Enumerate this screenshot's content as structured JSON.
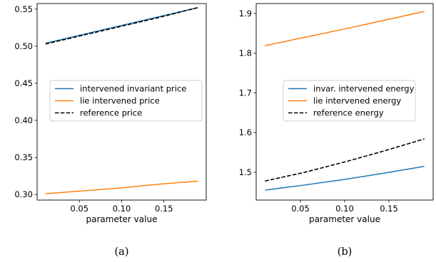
{
  "chart_data": [
    {
      "type": "line",
      "caption": "(a)",
      "xlabel": "parameter value",
      "ylabel": "",
      "xlim": [
        0.0,
        0.2
      ],
      "ylim": [
        0.2925,
        0.5575
      ],
      "xticks": [
        0.05,
        0.1,
        0.15
      ],
      "xtick_labels": [
        "0.05",
        "0.10",
        "0.15"
      ],
      "yticks": [
        0.3,
        0.35,
        0.4,
        0.45,
        0.5,
        0.55
      ],
      "ytick_labels": [
        "0.30",
        "0.35",
        "0.40",
        "0.45",
        "0.50",
        "0.55"
      ],
      "grid": false,
      "legend_position": "center-right",
      "series": [
        {
          "name": "intervened invariant price",
          "color": "#1f77b4",
          "dash": "solid",
          "x": [
            0.01,
            0.055,
            0.1,
            0.145,
            0.19
          ],
          "y": [
            0.504,
            0.516,
            0.528,
            0.54,
            0.552
          ]
        },
        {
          "name": "lie intervened price",
          "color": "#ff7f0e",
          "dash": "solid",
          "x": [
            0.01,
            0.055,
            0.1,
            0.145,
            0.19
          ],
          "y": [
            0.301,
            0.305,
            0.309,
            0.314,
            0.318
          ]
        },
        {
          "name": "reference price",
          "color": "#000000",
          "dash": "dashed",
          "x": [
            0.01,
            0.055,
            0.1,
            0.145,
            0.19
          ],
          "y": [
            0.503,
            0.515,
            0.527,
            0.539,
            0.552
          ]
        }
      ]
    },
    {
      "type": "line",
      "caption": "(b)",
      "xlabel": "parameter value",
      "ylabel": "",
      "xlim": [
        0.0,
        0.2
      ],
      "ylim": [
        1.43,
        1.925
      ],
      "xticks": [
        0.05,
        0.1,
        0.15
      ],
      "xtick_labels": [
        "0.05",
        "0.10",
        "0.15"
      ],
      "yticks": [
        1.5,
        1.6,
        1.7,
        1.8,
        1.9
      ],
      "ytick_labels": [
        "1.5",
        "1.6",
        "1.7",
        "1.8",
        "1.9"
      ],
      "grid": false,
      "legend_position": "center-right",
      "series": [
        {
          "name": "invar. intervened energy",
          "color": "#1f77b4",
          "dash": "solid",
          "x": [
            0.01,
            0.055,
            0.1,
            0.145,
            0.19
          ],
          "y": [
            1.455,
            1.468,
            1.482,
            1.498,
            1.515
          ]
        },
        {
          "name": "lie intervened energy",
          "color": "#ff7f0e",
          "dash": "solid",
          "x": [
            0.01,
            0.055,
            0.1,
            0.145,
            0.19
          ],
          "y": [
            1.819,
            1.84,
            1.861,
            1.883,
            1.905
          ]
        },
        {
          "name": "reference energy",
          "color": "#000000",
          "dash": "dashed",
          "x": [
            0.01,
            0.055,
            0.1,
            0.145,
            0.19
          ],
          "y": [
            1.478,
            1.5,
            1.526,
            1.554,
            1.584
          ]
        }
      ]
    }
  ]
}
